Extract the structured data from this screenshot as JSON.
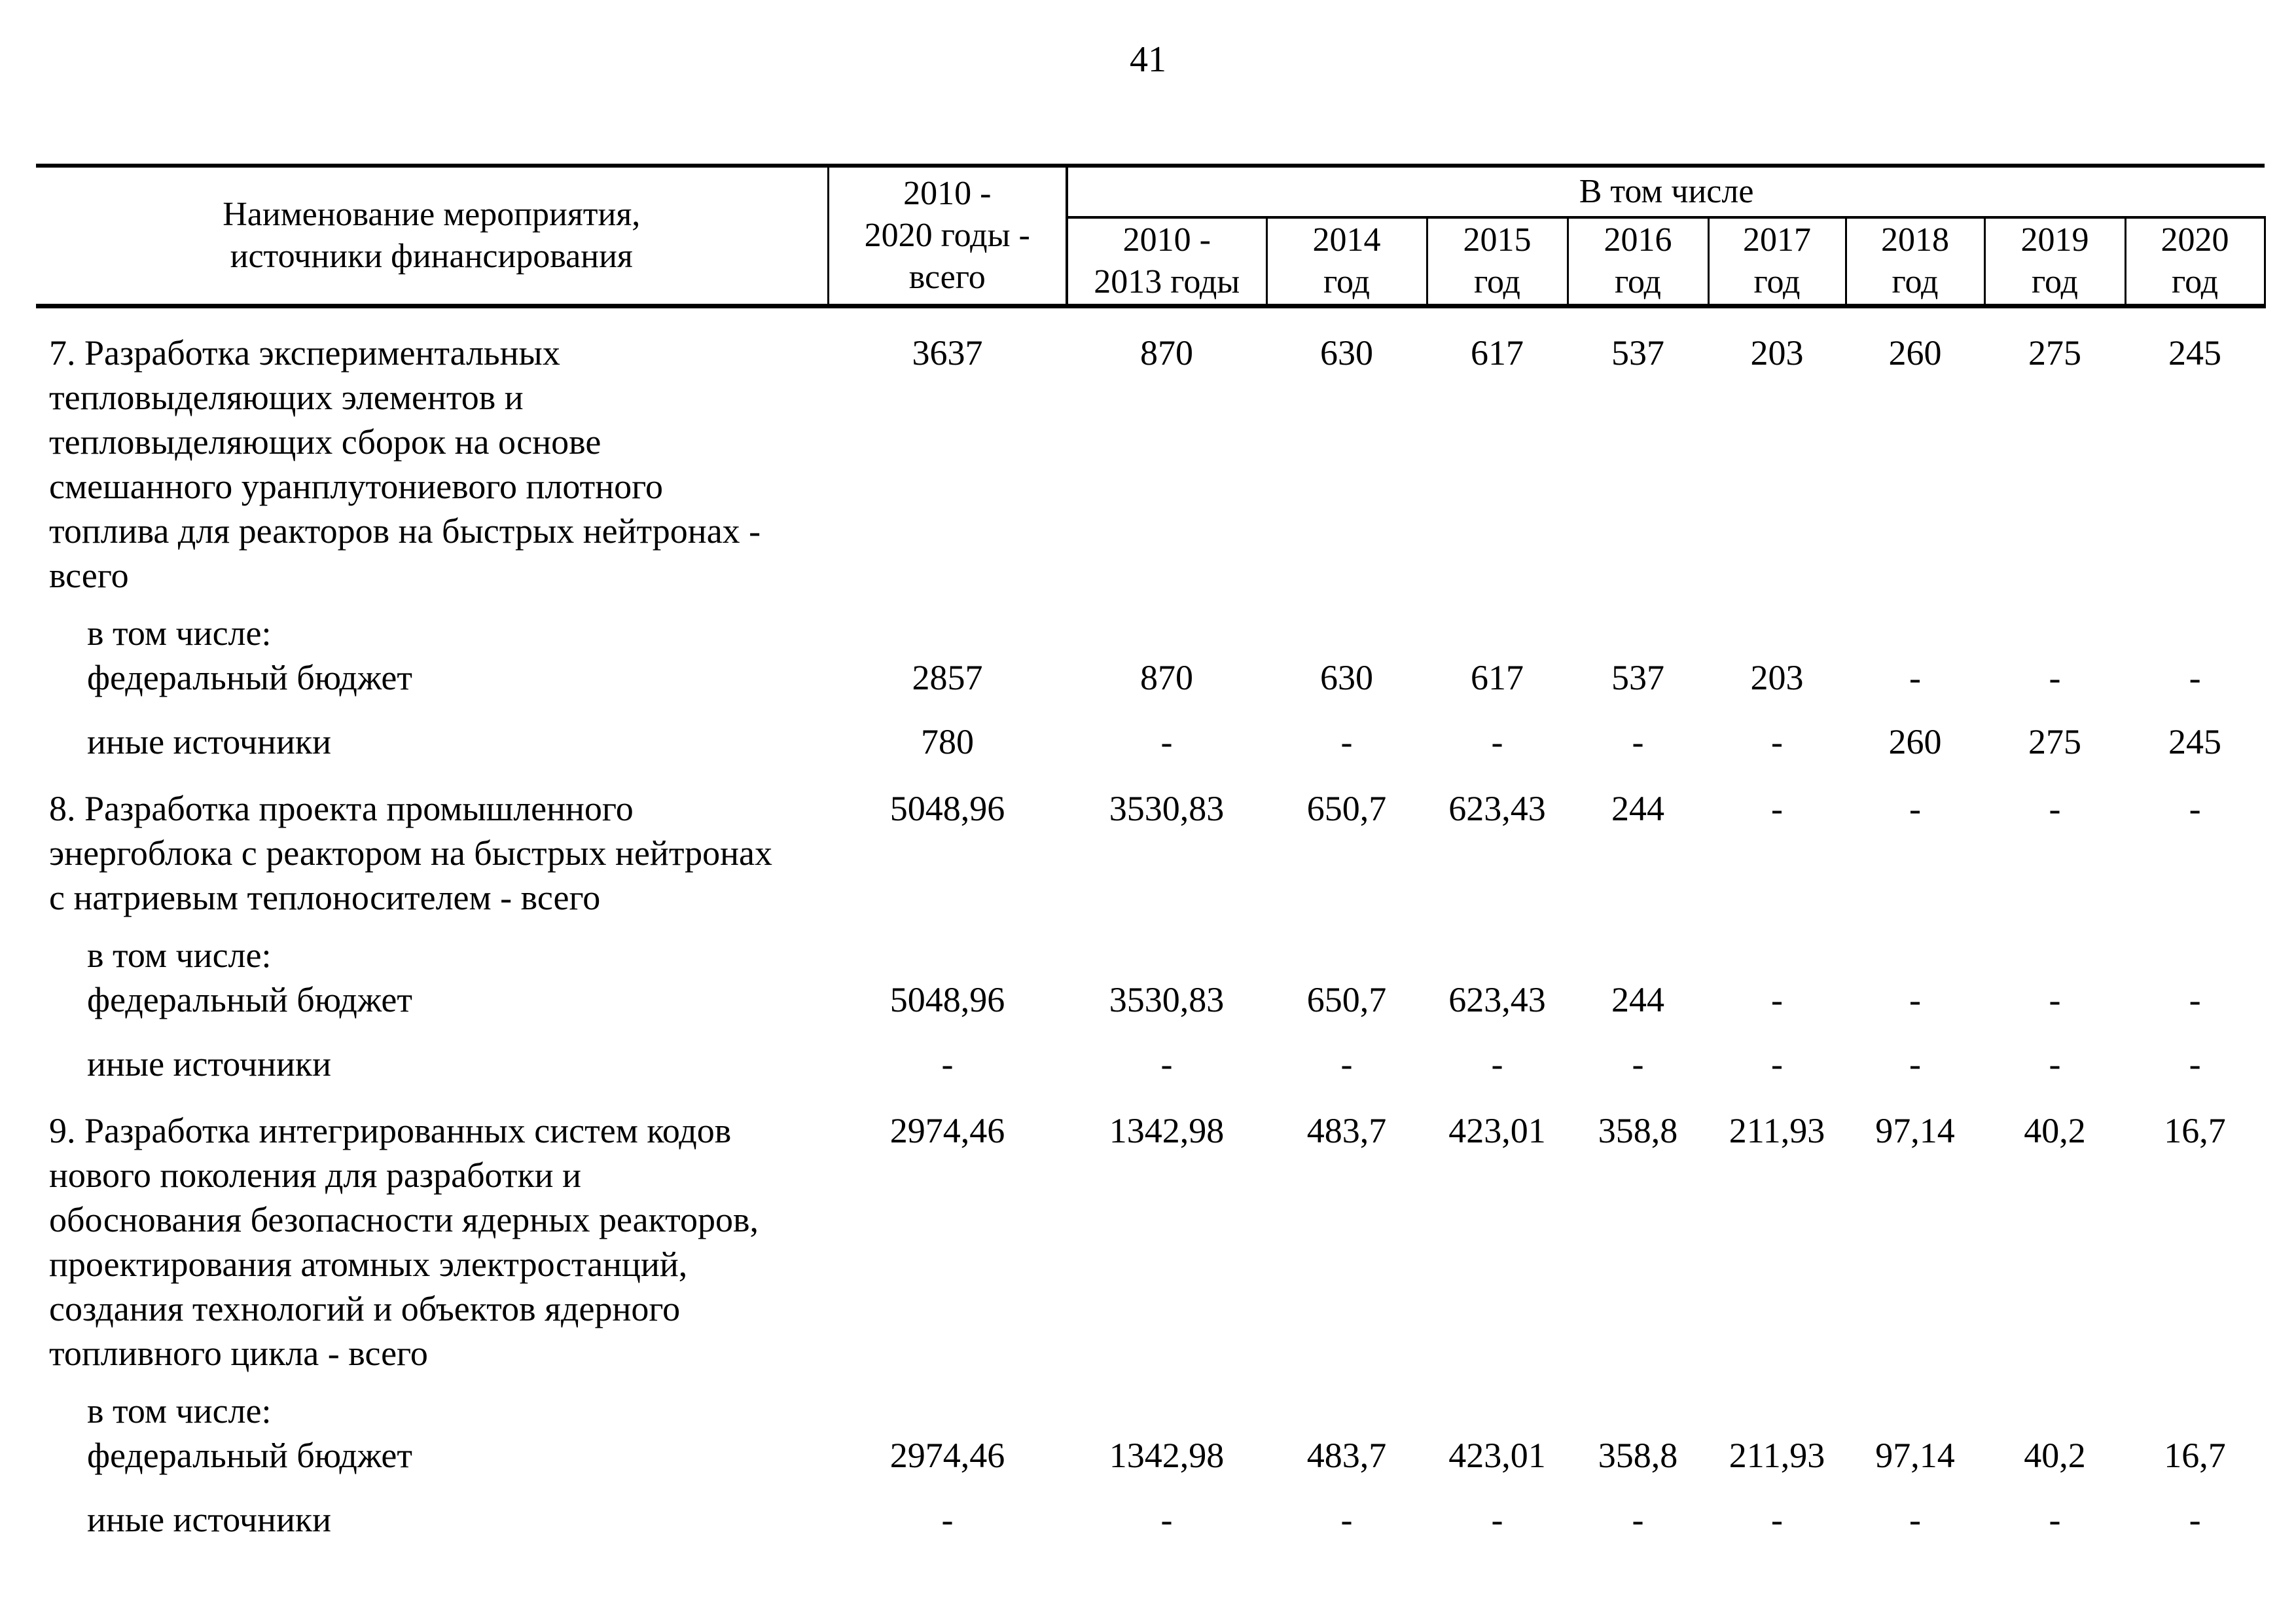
{
  "page": {
    "number": "41"
  },
  "table": {
    "header": {
      "name_col": "Наименование мероприятия,\nисточники финансирования",
      "total_col": "2010 -\n2020 годы -\nвсего",
      "group": "В том числе",
      "year_cols": [
        "2010 -\n2013 годы",
        "2014\nгод",
        "2015\nгод",
        "2016\nгод",
        "2017\nгод",
        "2018\nгод",
        "2019\nгод",
        "2020\nгод"
      ]
    },
    "rows": [
      {
        "type": "item",
        "label": "7. Разработка экспериментальных\nтепловыделяющих элементов и\nтепловыделяющих сборок на основе\nсмешанного уранплутониевого плотного\nтоплива для реакторов на быстрых нейтронах -\nвсего",
        "values": [
          "3637",
          "870",
          "630",
          "617",
          "537",
          "203",
          "260",
          "275",
          "245"
        ]
      },
      {
        "type": "subheader",
        "label": "в том числе:"
      },
      {
        "type": "sub",
        "label": "федеральный бюджет",
        "values": [
          "2857",
          "870",
          "630",
          "617",
          "537",
          "203",
          "-",
          "-",
          "-"
        ]
      },
      {
        "type": "sub",
        "label": "иные источники",
        "values": [
          "780",
          "-",
          "-",
          "-",
          "-",
          "-",
          "260",
          "275",
          "245"
        ]
      },
      {
        "type": "item",
        "label": "8. Разработка проекта промышленного\nэнергоблока с реактором на быстрых нейтронах\nс натриевым теплоносителем - всего",
        "values": [
          "5048,96",
          "3530,83",
          "650,7",
          "623,43",
          "244",
          "-",
          "-",
          "-",
          "-"
        ]
      },
      {
        "type": "subheader",
        "label": "в том числе:"
      },
      {
        "type": "sub",
        "label": "федеральный бюджет",
        "values": [
          "5048,96",
          "3530,83",
          "650,7",
          "623,43",
          "244",
          "-",
          "-",
          "-",
          "-"
        ]
      },
      {
        "type": "sub",
        "label": "иные источники",
        "values": [
          "-",
          "-",
          "-",
          "-",
          "-",
          "-",
          "-",
          "-",
          "-"
        ]
      },
      {
        "type": "item",
        "label": "9. Разработка интегрированных систем кодов\nнового поколения для разработки и\nобоснования безопасности ядерных реакторов,\nпроектирования атомных электростанций,\nсоздания технологий и объектов ядерного\nтопливного цикла - всего",
        "values": [
          "2974,46",
          "1342,98",
          "483,7",
          "423,01",
          "358,8",
          "211,93",
          "97,14",
          "40,2",
          "16,7"
        ]
      },
      {
        "type": "subheader",
        "label": "в том числе:"
      },
      {
        "type": "sub",
        "label": "федеральный бюджет",
        "values": [
          "2974,46",
          "1342,98",
          "483,7",
          "423,01",
          "358,8",
          "211,93",
          "97,14",
          "40,2",
          "16,7"
        ]
      },
      {
        "type": "sub",
        "label": "иные источники",
        "values": [
          "-",
          "-",
          "-",
          "-",
          "-",
          "-",
          "-",
          "-",
          "-"
        ]
      }
    ]
  }
}
